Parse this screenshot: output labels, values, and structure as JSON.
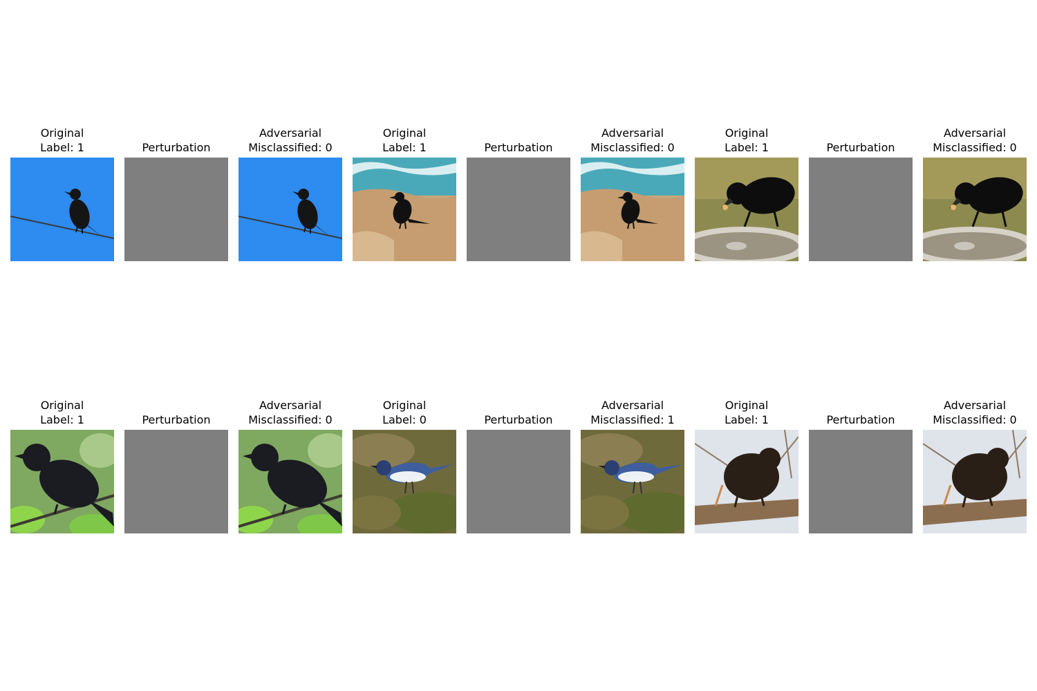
{
  "colors": {
    "perturbation_gray": "#7f7f7f",
    "background": "#ffffff"
  },
  "rows": [
    {
      "triplets": [
        {
          "original": {
            "title_line1": "Original",
            "title_line2": "Label: 1",
            "scene": "crow-on-wire-blue-sky"
          },
          "perturbation": {
            "title": "Perturbation"
          },
          "adversarial": {
            "title_line1": "Adversarial",
            "title_line2": "Misclassified: 0",
            "scene": "crow-on-wire-blue-sky"
          }
        },
        {
          "original": {
            "title_line1": "Original",
            "title_line2": "Label: 1",
            "scene": "crow-on-beach-rocks"
          },
          "perturbation": {
            "title": "Perturbation"
          },
          "adversarial": {
            "title_line1": "Adversarial",
            "title_line2": "Misclassified: 0",
            "scene": "crow-on-beach-rocks"
          }
        },
        {
          "original": {
            "title_line1": "Original",
            "title_line2": "Label: 1",
            "scene": "crow-at-birdbath"
          },
          "perturbation": {
            "title": "Perturbation"
          },
          "adversarial": {
            "title_line1": "Adversarial",
            "title_line2": "Misclassified: 0",
            "scene": "crow-at-birdbath"
          }
        }
      ]
    },
    {
      "triplets": [
        {
          "original": {
            "title_line1": "Original",
            "title_line2": "Label: 1",
            "scene": "crow-on-branch-green-leaves"
          },
          "perturbation": {
            "title": "Perturbation"
          },
          "adversarial": {
            "title_line1": "Adversarial",
            "title_line2": "Misclassified: 0",
            "scene": "crow-on-branch-green-leaves"
          }
        },
        {
          "original": {
            "title_line1": "Original",
            "title_line2": "Label: 0",
            "scene": "warbler-on-moss"
          },
          "perturbation": {
            "title": "Perturbation"
          },
          "adversarial": {
            "title_line1": "Adversarial",
            "title_line2": "Misclassified: 1",
            "scene": "warbler-on-moss"
          }
        },
        {
          "original": {
            "title_line1": "Original",
            "title_line2": "Label: 1",
            "scene": "crow-on-twigs"
          },
          "perturbation": {
            "title": "Perturbation"
          },
          "adversarial": {
            "title_line1": "Adversarial",
            "title_line2": "Misclassified: 0",
            "scene": "crow-on-twigs"
          }
        }
      ]
    }
  ]
}
